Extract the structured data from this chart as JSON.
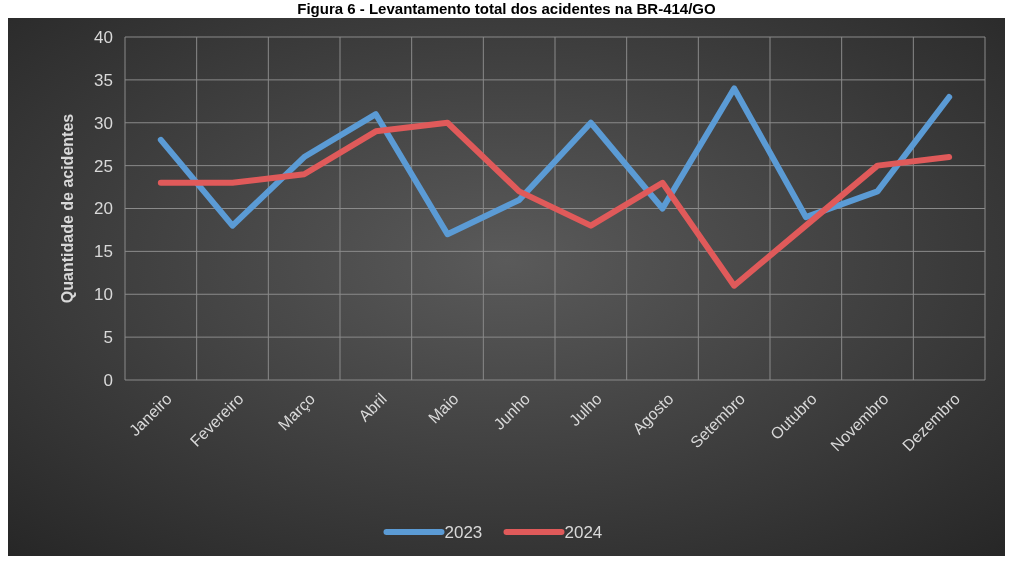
{
  "chart_data": {
    "type": "line",
    "title": "Figura 6 - Levantamento total dos acidentes na BR-414/GO",
    "ylabel": "Quantidade de acidentes",
    "categories": [
      "Janeiro",
      "Fevereiro",
      "Março",
      "Abril",
      "Maio",
      "Junho",
      "Julho",
      "Agosto",
      "Setembro",
      "Outubro",
      "Novembro",
      "Dezembro"
    ],
    "series": [
      {
        "name": "2023",
        "color": "#5b9bd5",
        "values": [
          28,
          18,
          26,
          31,
          17,
          21,
          30,
          20,
          34,
          19,
          22,
          33
        ]
      },
      {
        "name": "2024",
        "color": "#e05a5a",
        "values": [
          23,
          23,
          24,
          29,
          30,
          22,
          18,
          23,
          11,
          18,
          25,
          26
        ]
      }
    ],
    "ylim": [
      0,
      40
    ],
    "yticks": [
      0,
      5,
      10,
      15,
      20,
      25,
      30,
      35,
      40
    ],
    "grid": true,
    "legend": "bottom",
    "marker": "none",
    "line_style": "solid"
  }
}
